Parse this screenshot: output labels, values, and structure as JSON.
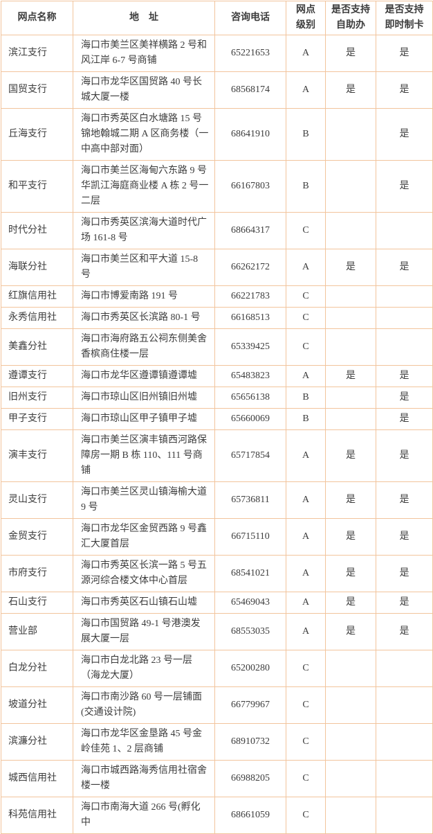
{
  "page": {
    "background_color": "#ffffff",
    "border_color": "#f2c49c",
    "text_color": "#3c3c3c"
  },
  "table": {
    "headers": {
      "name": "网点名称",
      "address": "地　址",
      "phone": "咨询电话",
      "level": "网点\n级别",
      "self_service": "是否支持\n自助办",
      "instant_card": "是否支持\n即时制卡"
    },
    "rows": [
      {
        "name": "滨江支行",
        "address": "海口市美兰区美祥横路 2 号和风江岸 6-7 号商铺",
        "phone": "65221653",
        "level": "A",
        "self_service": "是",
        "instant_card": "是"
      },
      {
        "name": "国贸支行",
        "address": "海口市龙华区国贸路 40 号长城大厦一楼",
        "phone": "68568174",
        "level": "A",
        "self_service": "是",
        "instant_card": "是"
      },
      {
        "name": "丘海支行",
        "address": "海口市秀英区白水塘路 15 号锦地翰城二期 A 区商务楼（一中高中部对面）",
        "phone": "68641910",
        "level": "B",
        "self_service": "",
        "instant_card": "是"
      },
      {
        "name": "和平支行",
        "address": "海口市美兰区海甸六东路 9 号华凯江海庭商业楼 A 栋 2 号一二层",
        "phone": "66167803",
        "level": "B",
        "self_service": "",
        "instant_card": "是"
      },
      {
        "name": "时代分社",
        "address": "海口市秀英区滨海大道时代广场 161-8 号",
        "phone": "68664317",
        "level": "C",
        "self_service": "",
        "instant_card": ""
      },
      {
        "name": "海联分社",
        "address": "海口市美兰区和平大道 15-8 号",
        "phone": "66262172",
        "level": "A",
        "self_service": "是",
        "instant_card": "是"
      },
      {
        "name": "红旗信用社",
        "address": "海口市博爱南路 191 号",
        "phone": "66221783",
        "level": "C",
        "self_service": "",
        "instant_card": ""
      },
      {
        "name": "永秀信用社",
        "address": "海口市秀英区长滨路 80-1 号",
        "phone": "66168513",
        "level": "C",
        "self_service": "",
        "instant_card": ""
      },
      {
        "name": "美鑫分社",
        "address": "海口市海府路五公祠东侧美舍香槟商住楼一层",
        "phone": "65339425",
        "level": "C",
        "self_service": "",
        "instant_card": ""
      },
      {
        "name": "遵谭支行",
        "address": "海口市龙华区遵谭镇遵谭墟",
        "phone": "65483823",
        "level": "A",
        "self_service": "是",
        "instant_card": "是"
      },
      {
        "name": "旧州支行",
        "address": "海口市琼山区旧州镇旧州墟",
        "phone": "65656138",
        "level": "B",
        "self_service": "",
        "instant_card": "是"
      },
      {
        "name": "甲子支行",
        "address": "海口市琼山区甲子镇甲子墟",
        "phone": "65660069",
        "level": "B",
        "self_service": "",
        "instant_card": "是"
      },
      {
        "name": "演丰支行",
        "address": "海口市美兰区演丰镇西河路保障房一期 B 栋 110、111 号商铺",
        "phone": "65717854",
        "level": "A",
        "self_service": "是",
        "instant_card": "是"
      },
      {
        "name": "灵山支行",
        "address": "海口市美兰区灵山镇海榆大道 9 号",
        "phone": "65736811",
        "level": "A",
        "self_service": "是",
        "instant_card": "是"
      },
      {
        "name": "金贸支行",
        "address": "海口市龙华区金贸西路 9 号鑫汇大厦首层",
        "phone": "66715110",
        "level": "A",
        "self_service": "是",
        "instant_card": "是"
      },
      {
        "name": "市府支行",
        "address": "海口市秀英区长滨一路 5 号五源河综合楼文体中心首层",
        "phone": "68541021",
        "level": "A",
        "self_service": "是",
        "instant_card": "是"
      },
      {
        "name": "石山支行",
        "address": "海口市秀英区石山镇石山墟",
        "phone": "65469043",
        "level": "A",
        "self_service": "是",
        "instant_card": "是"
      },
      {
        "name": "营业部",
        "address": "海口市国贸路 49-1 号港澳发展大厦一层",
        "phone": "68553035",
        "level": "A",
        "self_service": "是",
        "instant_card": "是"
      },
      {
        "name": "白龙分社",
        "address": "海口市白龙北路 23 号一层（海龙大厦）",
        "phone": "65200280",
        "level": "C",
        "self_service": "",
        "instant_card": ""
      },
      {
        "name": "坡道分社",
        "address": "海口市南沙路 60 号一层铺面(交通设计院)",
        "phone": "66779967",
        "level": "C",
        "self_service": "",
        "instant_card": ""
      },
      {
        "name": "滨濂分社",
        "address": "海口市龙华区金垦路 45 号金岭佳苑 1、2 层商铺",
        "phone": "68910732",
        "level": "C",
        "self_service": "",
        "instant_card": ""
      },
      {
        "name": "城西信用社",
        "address": "海口市城西路海秀信用社宿舍楼一楼",
        "phone": "66988205",
        "level": "C",
        "self_service": "",
        "instant_card": ""
      },
      {
        "name": "科苑信用社",
        "address": "海口市南海大道 266 号(孵化中",
        "phone": "68661059",
        "level": "C",
        "self_service": "",
        "instant_card": ""
      }
    ]
  }
}
